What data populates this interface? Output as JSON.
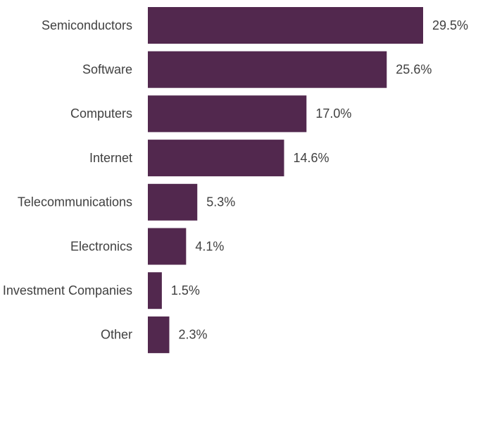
{
  "chart_data": {
    "type": "bar",
    "categories": [
      "Semiconductors",
      "Software",
      "Computers",
      "Internet",
      "Telecommunications",
      "Electronics",
      "Investment Companies",
      "Other"
    ],
    "values": [
      29.5,
      25.6,
      17.0,
      14.6,
      5.3,
      4.1,
      1.5,
      2.3
    ],
    "value_labels": [
      "29.5%",
      "25.6%",
      "17.0%",
      "14.6%",
      "5.3%",
      "4.1%",
      "1.5%",
      "2.3%"
    ],
    "color": "#52284e"
  }
}
